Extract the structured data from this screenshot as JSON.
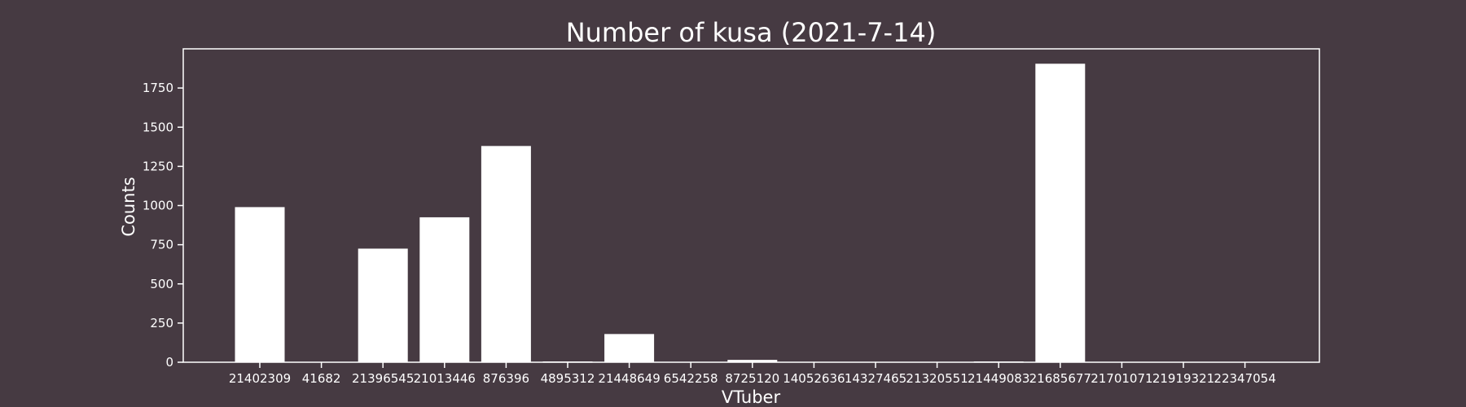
{
  "chart_data": {
    "type": "bar",
    "title": "Number of kusa (2021-7-14)",
    "xlabel": "VTuber",
    "ylabel": "Counts",
    "categories": [
      "21402309",
      "41682",
      "21396545",
      "21013446",
      "876396",
      "4895312",
      "21448649",
      "6542258",
      "8725120",
      "14052636",
      "14327465",
      "21320551",
      "21449083",
      "21685677",
      "21701071",
      "21919321",
      "22347054"
    ],
    "values": [
      990,
      0,
      725,
      925,
      1380,
      5,
      180,
      0,
      15,
      0,
      0,
      0,
      5,
      1905,
      0,
      0,
      0
    ],
    "ylim": [
      0,
      2000
    ],
    "yticks": [
      0,
      250,
      500,
      750,
      1000,
      1250,
      1500,
      1750
    ],
    "grid": false,
    "legend": "none",
    "colors": {
      "background": "#463a42",
      "bar": "#ffffff",
      "axes": "#ffffff",
      "text": "#ffffff"
    }
  }
}
